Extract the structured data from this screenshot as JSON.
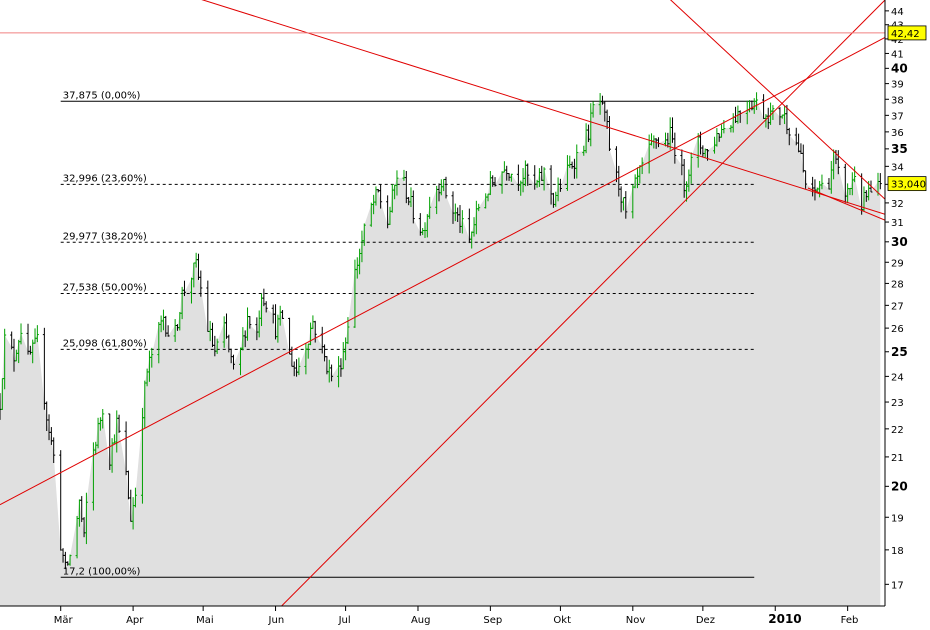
{
  "chart_data": {
    "type": "ohlc",
    "ylim": [
      16.4,
      44.8
    ],
    "y_ticks": [
      17,
      18,
      19,
      20,
      21,
      22,
      23,
      24,
      25,
      26,
      27,
      28,
      29,
      30,
      31,
      32,
      33,
      34,
      35,
      36,
      37,
      38,
      39,
      40,
      41,
      42,
      43,
      44
    ],
    "y_bold_ticks": [
      20,
      25,
      30,
      35,
      40
    ],
    "x_labels": [
      {
        "label": "Mär",
        "day": 0
      },
      {
        "label": "Apr",
        "day": 31
      },
      {
        "label": "Mai",
        "day": 61
      },
      {
        "label": "Jun",
        "day": 92
      },
      {
        "label": "Jul",
        "day": 122
      },
      {
        "label": "Aug",
        "day": 153
      },
      {
        "label": "Sep",
        "day": 184
      },
      {
        "label": "Okt",
        "day": 214
      },
      {
        "label": "Nov",
        "day": 245
      },
      {
        "label": "Dez",
        "day": 275
      },
      {
        "label": "2010",
        "day": 306,
        "bold": true
      },
      {
        "label": "Feb",
        "day": 337
      }
    ],
    "xlim_days": [
      -26,
      353
    ],
    "last_day": 351,
    "series_keypoints": [
      [
        -26,
        23.0
      ],
      [
        -24,
        25.5
      ],
      [
        -20,
        24.8
      ],
      [
        -17,
        26.0
      ],
      [
        -14,
        24.7
      ],
      [
        -10,
        25.4
      ],
      [
        -6,
        22.5
      ],
      [
        -2,
        20.5
      ],
      [
        0,
        18.2
      ],
      [
        2,
        17.4
      ],
      [
        5,
        18.0
      ],
      [
        8,
        19.5
      ],
      [
        10,
        18.3
      ],
      [
        12,
        20.5
      ],
      [
        15,
        21.6
      ],
      [
        18,
        22.8
      ],
      [
        21,
        21.0
      ],
      [
        24,
        22.2
      ],
      [
        27,
        21.0
      ],
      [
        30,
        19.0
      ],
      [
        32,
        19.8
      ],
      [
        34,
        22.0
      ],
      [
        37,
        24.2
      ],
      [
        40,
        25.2
      ],
      [
        44,
        26.5
      ],
      [
        48,
        25.2
      ],
      [
        52,
        27.5
      ],
      [
        55,
        28.2
      ],
      [
        58,
        28.8
      ],
      [
        61,
        27.2
      ],
      [
        63,
        26.0
      ],
      [
        66,
        25.0
      ],
      [
        70,
        25.9
      ],
      [
        74,
        24.2
      ],
      [
        77,
        25.0
      ],
      [
        80,
        26.5
      ],
      [
        84,
        25.8
      ],
      [
        86,
        27.6
      ],
      [
        89,
        27.0
      ],
      [
        92,
        26.0
      ],
      [
        95,
        26.5
      ],
      [
        98,
        24.8
      ],
      [
        101,
        24.2
      ],
      [
        104,
        25.0
      ],
      [
        108,
        26.3
      ],
      [
        112,
        25.0
      ],
      [
        115,
        24.2
      ],
      [
        118,
        23.8
      ],
      [
        122,
        25.5
      ],
      [
        125,
        28.0
      ],
      [
        128,
        29.5
      ],
      [
        132,
        31.5
      ],
      [
        136,
        32.5
      ],
      [
        140,
        31.0
      ],
      [
        144,
        33.5
      ],
      [
        147,
        33.0
      ],
      [
        151,
        31.5
      ],
      [
        155,
        30.5
      ],
      [
        159,
        32.5
      ],
      [
        163,
        33.2
      ],
      [
        167,
        31.8
      ],
      [
        171,
        31.0
      ],
      [
        175,
        30.0
      ],
      [
        179,
        31.8
      ],
      [
        183,
        32.7
      ],
      [
        187,
        33.5
      ],
      [
        191,
        34.0
      ],
      [
        195,
        33.3
      ],
      [
        199,
        33.6
      ],
      [
        203,
        32.8
      ],
      [
        207,
        33.6
      ],
      [
        211,
        32.2
      ],
      [
        215,
        33.2
      ],
      [
        219,
        34.2
      ],
      [
        223,
        35.0
      ],
      [
        226,
        36.0
      ],
      [
        228,
        37.4
      ],
      [
        231,
        37.8
      ],
      [
        234,
        36.2
      ],
      [
        236,
        34.0
      ],
      [
        239,
        33.0
      ],
      [
        242,
        31.3
      ],
      [
        245,
        32.5
      ],
      [
        248,
        33.6
      ],
      [
        252,
        34.8
      ],
      [
        255,
        35.6
      ],
      [
        258,
        35.2
      ],
      [
        261,
        35.8
      ],
      [
        264,
        34.8
      ],
      [
        267,
        33.0
      ],
      [
        270,
        34.2
      ],
      [
        273,
        35.3
      ],
      [
        277,
        34.8
      ],
      [
        281,
        35.8
      ],
      [
        285,
        36.5
      ],
      [
        289,
        37.0
      ],
      [
        293,
        37.6
      ],
      [
        297,
        37.9
      ],
      [
        301,
        37.2
      ],
      [
        305,
        37.0
      ],
      [
        309,
        37.2
      ],
      [
        313,
        36.0
      ],
      [
        316,
        35.0
      ],
      [
        319,
        33.0
      ],
      [
        322,
        32.4
      ],
      [
        325,
        33.0
      ],
      [
        328,
        32.6
      ],
      [
        331,
        34.5
      ],
      [
        334,
        33.0
      ],
      [
        337,
        32.5
      ],
      [
        340,
        33.6
      ],
      [
        343,
        31.9
      ],
      [
        346,
        32.5
      ],
      [
        348,
        32.2
      ],
      [
        351,
        33.04
      ]
    ],
    "fib_levels": [
      {
        "label": "37,875 (0,00%)",
        "value": 37.875,
        "style": "solid"
      },
      {
        "label": "32,996 (23,60%)",
        "value": 32.996,
        "style": "dashed"
      },
      {
        "label": "29,977 (38,20%)",
        "value": 29.977,
        "style": "dashed"
      },
      {
        "label": "27,538 (50,00%)",
        "value": 27.538,
        "style": "dashed"
      },
      {
        "label": "25,098 (61,80%)",
        "value": 25.098,
        "style": "dashed"
      },
      {
        "label": "17,2 (100,00%)",
        "value": 17.2,
        "style": "solid"
      }
    ],
    "fib_x_range_days": [
      0,
      297
    ],
    "trendlines": [
      {
        "name": "descending-long",
        "p1": [
          -26,
          49.8
        ],
        "p2": [
          353,
          31.4
        ]
      },
      {
        "name": "ascending-support",
        "p1": [
          -26,
          19.4
        ],
        "p2": [
          353,
          42.1
        ]
      },
      {
        "name": "steep-ascending",
        "p1": [
          85,
          15.8
        ],
        "p2": [
          353,
          44.8
        ]
      },
      {
        "name": "steep-descending",
        "p1": [
          260,
          45.0
        ],
        "p2": [
          353,
          32.2
        ]
      },
      {
        "name": "lower-channel",
        "p1": [
          320,
          32.8
        ],
        "p2": [
          353,
          31.1
        ]
      }
    ],
    "horizontal_marker": {
      "label": "42,42",
      "value": 42.42
    },
    "last_price_marker": {
      "label": "33,040",
      "value": 33.04
    },
    "colors": {
      "area_fill": "#e0e0e0",
      "trendline": "#e00000",
      "bar_up": "#00a000",
      "bar_down": "#000000",
      "marker_bg": "#ffff00"
    }
  }
}
